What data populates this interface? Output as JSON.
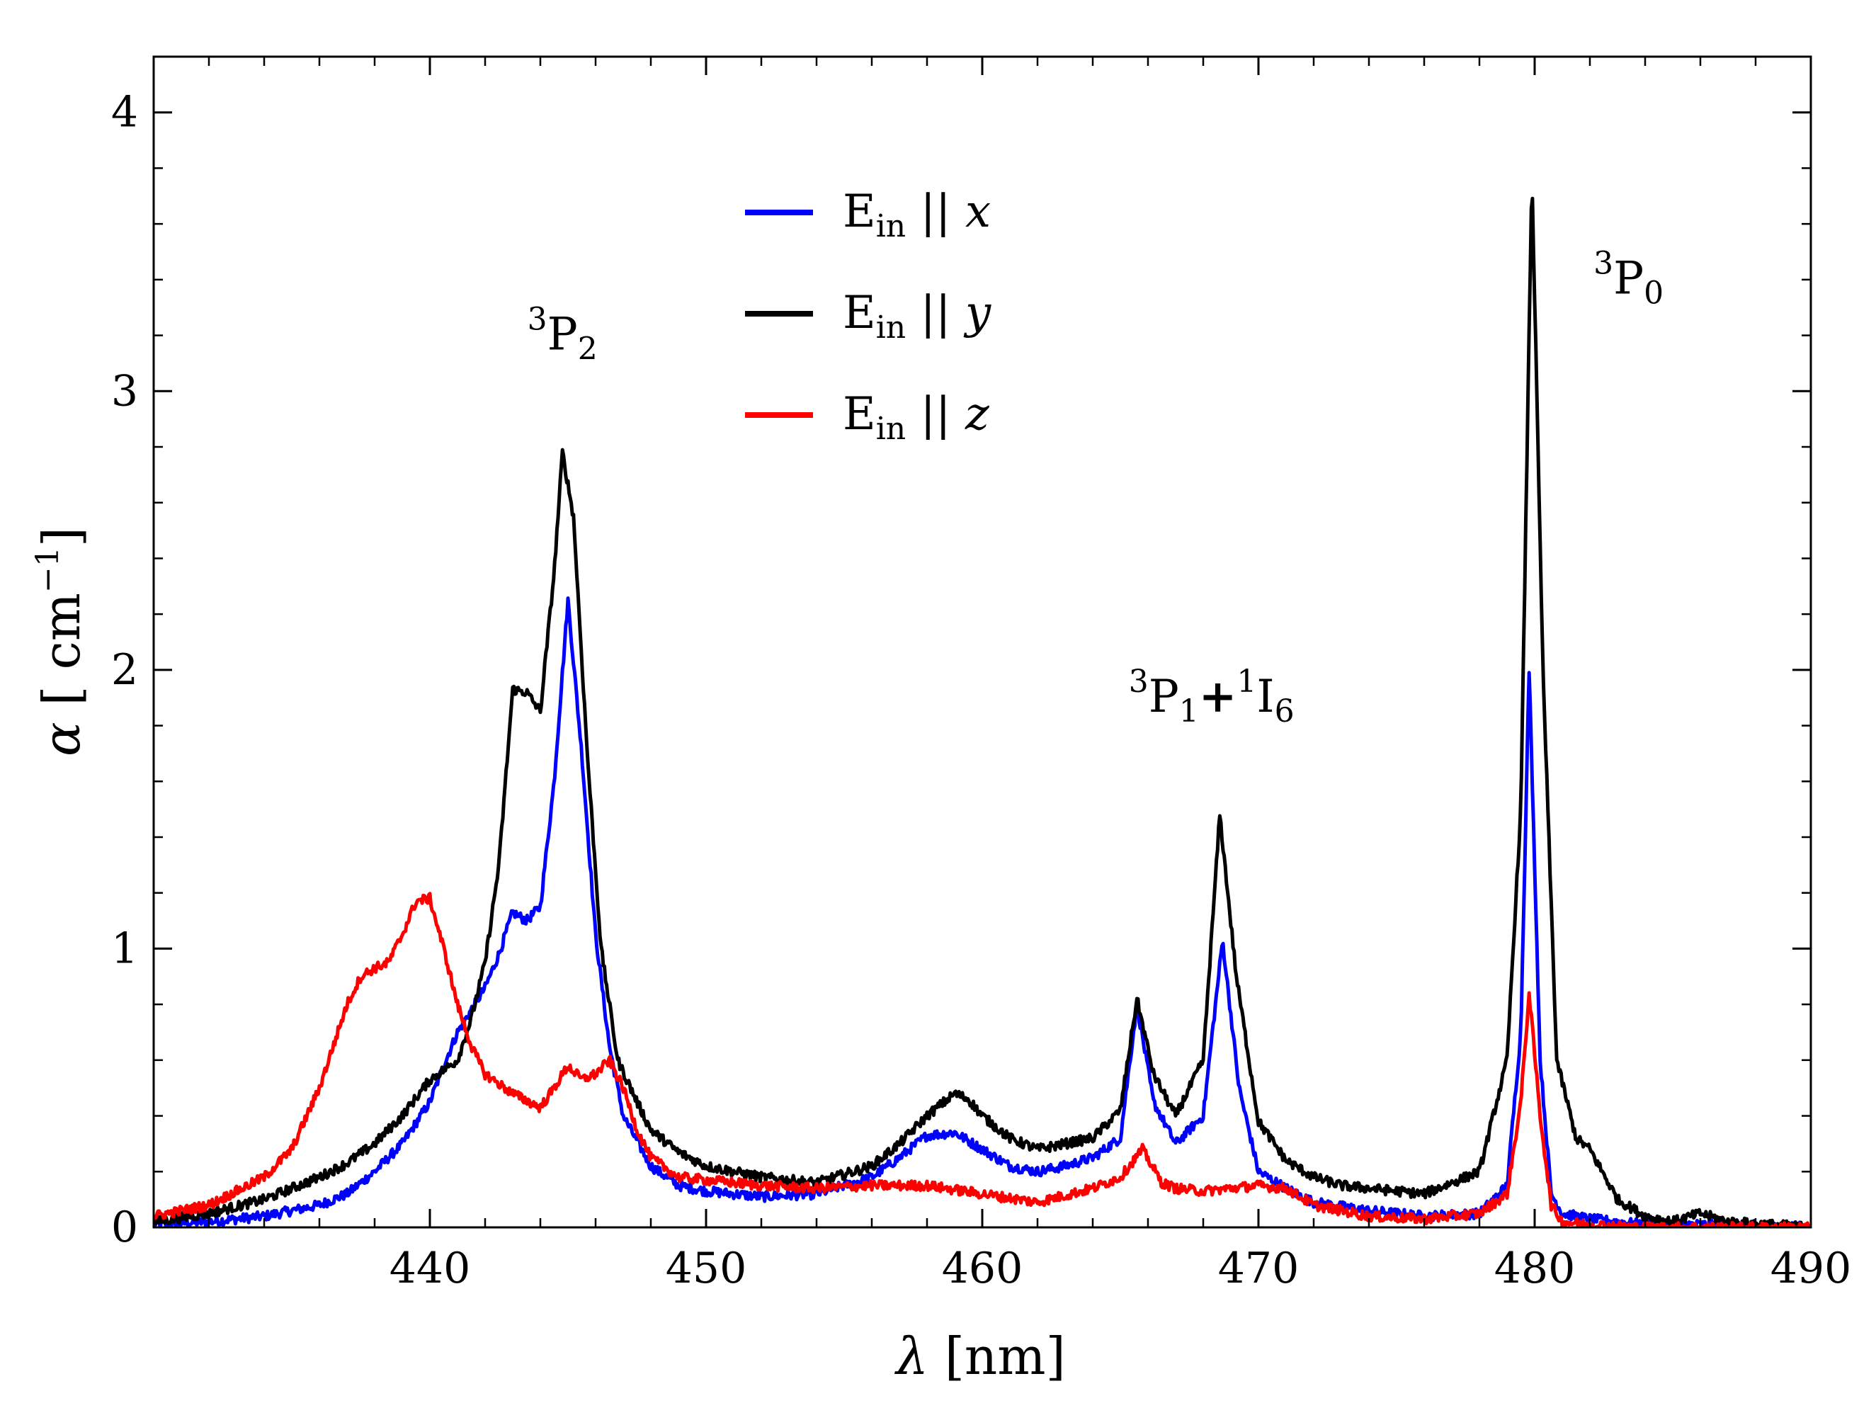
{
  "chart_data": {
    "type": "line",
    "title": "",
    "xlabel": "λ [nm]",
    "ylabel": "α [ cm⁻¹]",
    "xlim": [
      430,
      490
    ],
    "ylim": [
      0,
      4.2
    ],
    "x_ticks": [
      440,
      450,
      460,
      470,
      480,
      490
    ],
    "y_ticks": [
      0,
      1,
      2,
      3,
      4
    ],
    "grid": false,
    "legend_position": "top-center",
    "series": [
      {
        "name": "E_in || x",
        "color": "#0000ff",
        "points": [
          [
            430,
            0.01
          ],
          [
            432,
            0.02
          ],
          [
            434,
            0.04
          ],
          [
            436,
            0.08
          ],
          [
            437,
            0.12
          ],
          [
            438,
            0.2
          ],
          [
            439,
            0.3
          ],
          [
            440,
            0.45
          ],
          [
            440.5,
            0.58
          ],
          [
            441,
            0.7
          ],
          [
            441.5,
            0.78
          ],
          [
            442,
            0.86
          ],
          [
            442.5,
            0.98
          ],
          [
            443,
            1.13
          ],
          [
            443.5,
            1.1
          ],
          [
            444,
            1.15
          ],
          [
            444.5,
            1.6
          ],
          [
            445,
            2.25
          ],
          [
            445.5,
            1.7
          ],
          [
            446,
            1.05
          ],
          [
            446.5,
            0.65
          ],
          [
            447,
            0.4
          ],
          [
            448,
            0.22
          ],
          [
            449,
            0.15
          ],
          [
            450,
            0.13
          ],
          [
            452,
            0.11
          ],
          [
            454,
            0.12
          ],
          [
            456,
            0.18
          ],
          [
            457,
            0.25
          ],
          [
            458,
            0.33
          ],
          [
            459,
            0.34
          ],
          [
            460,
            0.28
          ],
          [
            461,
            0.22
          ],
          [
            462,
            0.2
          ],
          [
            463,
            0.22
          ],
          [
            464,
            0.25
          ],
          [
            465,
            0.32
          ],
          [
            465.6,
            0.8
          ],
          [
            466.2,
            0.45
          ],
          [
            467,
            0.3
          ],
          [
            468,
            0.4
          ],
          [
            468.7,
            1.03
          ],
          [
            469.3,
            0.5
          ],
          [
            470,
            0.2
          ],
          [
            471,
            0.14
          ],
          [
            472,
            0.09
          ],
          [
            474,
            0.06
          ],
          [
            476,
            0.04
          ],
          [
            478,
            0.05
          ],
          [
            479,
            0.15
          ],
          [
            479.5,
            0.7
          ],
          [
            479.8,
            2.0
          ],
          [
            480.2,
            0.6
          ],
          [
            480.6,
            0.12
          ],
          [
            481,
            0.05
          ],
          [
            482,
            0.03
          ],
          [
            484,
            0.01
          ],
          [
            486,
            0.01
          ],
          [
            490,
            0.0
          ]
        ]
      },
      {
        "name": "E_in || y",
        "color": "#000000",
        "points": [
          [
            430,
            0.02
          ],
          [
            432,
            0.05
          ],
          [
            434,
            0.1
          ],
          [
            436,
            0.18
          ],
          [
            437,
            0.23
          ],
          [
            438,
            0.3
          ],
          [
            439,
            0.4
          ],
          [
            440,
            0.53
          ],
          [
            441,
            0.6
          ],
          [
            441.5,
            0.75
          ],
          [
            442,
            0.95
          ],
          [
            442.5,
            1.3
          ],
          [
            443,
            1.93
          ],
          [
            443.5,
            1.92
          ],
          [
            444,
            1.85
          ],
          [
            444.5,
            2.35
          ],
          [
            444.8,
            2.78
          ],
          [
            445.2,
            2.55
          ],
          [
            445.7,
            1.7
          ],
          [
            446.2,
            1.0
          ],
          [
            446.8,
            0.6
          ],
          [
            447.5,
            0.45
          ],
          [
            448,
            0.35
          ],
          [
            449,
            0.27
          ],
          [
            450,
            0.22
          ],
          [
            452,
            0.18
          ],
          [
            454,
            0.16
          ],
          [
            456,
            0.22
          ],
          [
            457,
            0.3
          ],
          [
            458,
            0.4
          ],
          [
            459,
            0.48
          ],
          [
            459.5,
            0.46
          ],
          [
            460,
            0.4
          ],
          [
            461,
            0.32
          ],
          [
            462,
            0.28
          ],
          [
            463,
            0.3
          ],
          [
            464,
            0.32
          ],
          [
            465,
            0.42
          ],
          [
            465.6,
            0.82
          ],
          [
            466.2,
            0.55
          ],
          [
            467,
            0.4
          ],
          [
            468,
            0.6
          ],
          [
            468.6,
            1.48
          ],
          [
            469.2,
            0.9
          ],
          [
            470,
            0.38
          ],
          [
            471,
            0.24
          ],
          [
            472,
            0.18
          ],
          [
            473,
            0.15
          ],
          [
            474,
            0.14
          ],
          [
            476,
            0.12
          ],
          [
            478,
            0.2
          ],
          [
            479,
            0.6
          ],
          [
            479.5,
            1.5
          ],
          [
            479.9,
            3.78
          ],
          [
            480.3,
            2.0
          ],
          [
            480.8,
            0.6
          ],
          [
            481.5,
            0.32
          ],
          [
            482,
            0.28
          ],
          [
            483,
            0.1
          ],
          [
            484,
            0.04
          ],
          [
            485,
            0.02
          ],
          [
            486,
            0.05
          ],
          [
            487,
            0.02
          ],
          [
            490,
            0.0
          ]
        ]
      },
      {
        "name": "E_in || z",
        "color": "#ff0000",
        "points": [
          [
            430,
            0.04
          ],
          [
            432,
            0.08
          ],
          [
            434,
            0.18
          ],
          [
            435,
            0.28
          ],
          [
            436,
            0.5
          ],
          [
            437,
            0.8
          ],
          [
            437.5,
            0.9
          ],
          [
            438,
            0.93
          ],
          [
            438.5,
            0.95
          ],
          [
            439,
            1.05
          ],
          [
            439.5,
            1.17
          ],
          [
            440,
            1.18
          ],
          [
            440.5,
            1.0
          ],
          [
            441,
            0.8
          ],
          [
            441.5,
            0.65
          ],
          [
            442,
            0.55
          ],
          [
            443,
            0.48
          ],
          [
            444,
            0.43
          ],
          [
            444.5,
            0.5
          ],
          [
            445,
            0.58
          ],
          [
            445.5,
            0.53
          ],
          [
            446,
            0.55
          ],
          [
            446.5,
            0.6
          ],
          [
            447,
            0.5
          ],
          [
            447.5,
            0.35
          ],
          [
            448,
            0.25
          ],
          [
            449,
            0.18
          ],
          [
            450,
            0.17
          ],
          [
            452,
            0.15
          ],
          [
            454,
            0.14
          ],
          [
            456,
            0.15
          ],
          [
            458,
            0.15
          ],
          [
            460,
            0.12
          ],
          [
            462,
            0.09
          ],
          [
            464,
            0.14
          ],
          [
            465,
            0.18
          ],
          [
            465.8,
            0.28
          ],
          [
            466.5,
            0.16
          ],
          [
            467,
            0.14
          ],
          [
            468,
            0.13
          ],
          [
            470,
            0.15
          ],
          [
            471,
            0.14
          ],
          [
            472,
            0.08
          ],
          [
            474,
            0.04
          ],
          [
            476,
            0.03
          ],
          [
            478,
            0.05
          ],
          [
            479,
            0.12
          ],
          [
            479.5,
            0.45
          ],
          [
            479.8,
            0.84
          ],
          [
            480.2,
            0.4
          ],
          [
            480.6,
            0.08
          ],
          [
            481,
            0.02
          ],
          [
            482,
            0.01
          ],
          [
            484,
            0.0
          ],
          [
            490,
            0.0
          ]
        ]
      }
    ],
    "annotations": [
      {
        "id": "p2",
        "sup": "3",
        "base": "P",
        "sub": "2",
        "x": 444.8,
        "y": 3.15
      },
      {
        "id": "p1i6",
        "sup1": "3",
        "base1": "P",
        "sub1": "1",
        "plus": "+",
        "sup2": "1",
        "base2": "I",
        "sub2": "6",
        "x": 468.3,
        "y": 1.85
      },
      {
        "id": "p0",
        "sup": "3",
        "base": "P",
        "sub": "0",
        "x": 483.4,
        "y": 3.35
      }
    ],
    "legend": [
      {
        "base": "E",
        "sub": "in",
        "sep": " || ",
        "var": "x",
        "color": "#0000ff"
      },
      {
        "base": "E",
        "sub": "in",
        "sep": " || ",
        "var": "y",
        "color": "#000000"
      },
      {
        "base": "E",
        "sub": "in",
        "sep": " || ",
        "var": "z",
        "color": "#ff0000"
      }
    ],
    "axis_titles": {
      "x_symbol": "λ",
      "x_unit": " [nm]",
      "y_symbol": "α",
      "y_open": " [ cm",
      "y_exp": "−1",
      "y_close": "]"
    }
  }
}
